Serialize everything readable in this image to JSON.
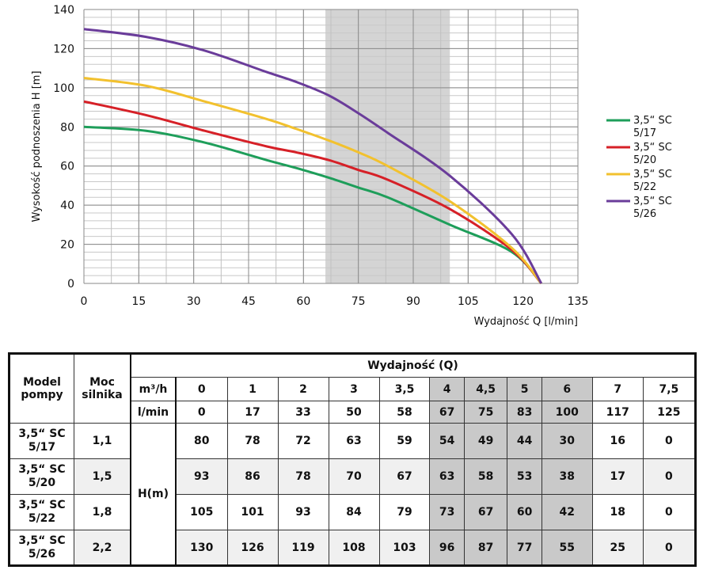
{
  "chart_data": {
    "type": "line",
    "xlabel": "Wydajność Q [l/min]",
    "ylabel": "Wysokość podnoszenia H [m]",
    "xlim": [
      0,
      135
    ],
    "ylim": [
      0,
      140
    ],
    "xticks": [
      "0",
      "15",
      "30",
      "45",
      "60",
      "75",
      "90",
      "105",
      "120",
      "135"
    ],
    "yticks": [
      "0",
      "20",
      "40",
      "60",
      "80",
      "100",
      "120",
      "140"
    ],
    "grid": true,
    "shaded_range": [
      66,
      100
    ],
    "legend_position": "right",
    "x": [
      0,
      17,
      33,
      50,
      58,
      67,
      75,
      83,
      100,
      117,
      125
    ],
    "series": [
      {
        "name": "3,5“ SC 5/17",
        "line1": "3,5“ SC",
        "line2": "5/17",
        "color": "#1e9e5a",
        "values": [
          80,
          78,
          72,
          63,
          59,
          54,
          49,
          44,
          30,
          16,
          0
        ]
      },
      {
        "name": "3,5“ SC 5/20",
        "line1": "3,5“ SC",
        "line2": "5/20",
        "color": "#d62027",
        "values": [
          93,
          86,
          78,
          70,
          67,
          63,
          58,
          53,
          38,
          17,
          0
        ]
      },
      {
        "name": "3,5“ SC 5/22",
        "line1": "3,5“ SC",
        "line2": "5/22",
        "color": "#f2c12e",
        "values": [
          105,
          101,
          93,
          84,
          79,
          73,
          67,
          60,
          42,
          18,
          0
        ]
      },
      {
        "name": "3,5“ SC 5/26",
        "line1": "3,5“ SC",
        "line2": "5/26",
        "color": "#6a3c9a",
        "values": [
          130,
          126,
          119,
          108,
          103,
          96,
          87,
          77,
          55,
          25,
          0
        ]
      }
    ]
  },
  "table": {
    "h_model": "Model pompy",
    "h_power": "Moc silnika",
    "h_flow": "Wydajność (Q)",
    "unit_m3h": "m³/h",
    "unit_lmin": "l/min",
    "unit_h": "H(m)",
    "m3h": [
      "0",
      "1",
      "2",
      "3",
      "3,5",
      "4",
      "4,5",
      "5",
      "6",
      "7",
      "7,5"
    ],
    "lmin": [
      "0",
      "17",
      "33",
      "50",
      "58",
      "67",
      "75",
      "83",
      "100",
      "117",
      "125"
    ],
    "rows": [
      {
        "model1": "3,5“ SC",
        "model2": "5/17",
        "power": "1,1",
        "h": [
          "80",
          "78",
          "72",
          "63",
          "59",
          "54",
          "49",
          "44",
          "30",
          "16",
          "0"
        ]
      },
      {
        "model1": "3,5“ SC",
        "model2": "5/20",
        "power": "1,5",
        "h": [
          "93",
          "86",
          "78",
          "70",
          "67",
          "63",
          "58",
          "53",
          "38",
          "17",
          "0"
        ]
      },
      {
        "model1": "3,5“ SC",
        "model2": "5/22",
        "power": "1,8",
        "h": [
          "105",
          "101",
          "93",
          "84",
          "79",
          "73",
          "67",
          "60",
          "42",
          "18",
          "0"
        ]
      },
      {
        "model1": "3,5“ SC",
        "model2": "5/26",
        "power": "2,2",
        "h": [
          "130",
          "126",
          "119",
          "108",
          "103",
          "96",
          "87",
          "77",
          "55",
          "25",
          "0"
        ]
      }
    ]
  }
}
